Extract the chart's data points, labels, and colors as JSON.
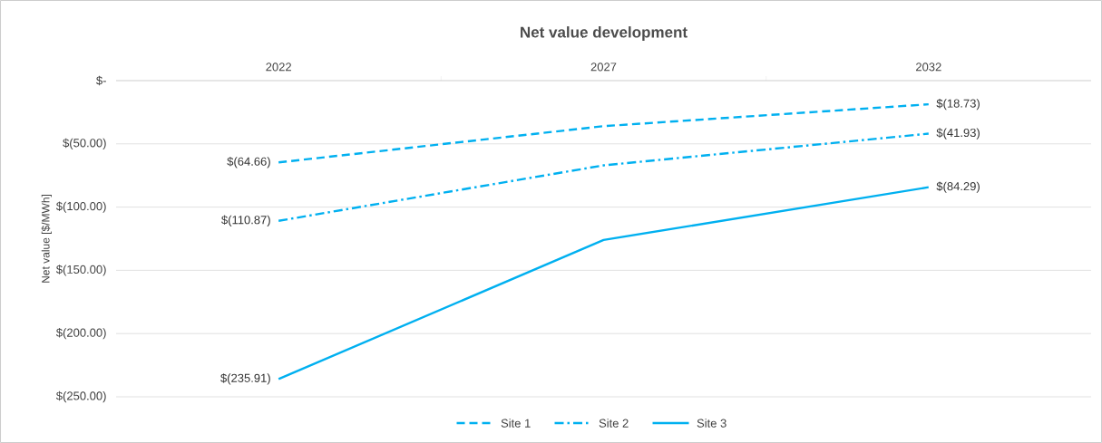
{
  "chart_data": {
    "type": "line",
    "title": "Net value development",
    "ylabel": "Net value [$/MWh]",
    "categories": [
      "2022",
      "2027",
      "2032"
    ],
    "series": [
      {
        "name": "Site 1",
        "color": "#00b0f0",
        "line_style": "dashed",
        "values": [
          -64.66,
          -36,
          -18.73
        ],
        "value_labels": [
          "$(64.66)",
          null,
          "$(18.73)"
        ]
      },
      {
        "name": "Site 2",
        "color": "#00b0f0",
        "line_style": "dashdot",
        "values": [
          -110.87,
          -67,
          -41.93
        ],
        "value_labels": [
          "$(110.87)",
          null,
          "$(41.93)"
        ]
      },
      {
        "name": "Site 3",
        "color": "#00b0f0",
        "line_style": "solid",
        "values": [
          -235.91,
          -126,
          -84.29
        ],
        "value_labels": [
          "$(235.91)",
          null,
          "$(84.29)"
        ]
      }
    ],
    "ylim": [
      -250,
      0
    ],
    "yticks": [
      {
        "value": 0,
        "label": "$-"
      },
      {
        "value": -50,
        "label": "$(50.00)"
      },
      {
        "value": -100,
        "label": "$(100.00)"
      },
      {
        "value": -150,
        "label": "$(150.00)"
      },
      {
        "value": -200,
        "label": "$(200.00)"
      },
      {
        "value": -250,
        "label": "$(250.00)"
      }
    ],
    "grid": "y",
    "legend": "bottom"
  }
}
